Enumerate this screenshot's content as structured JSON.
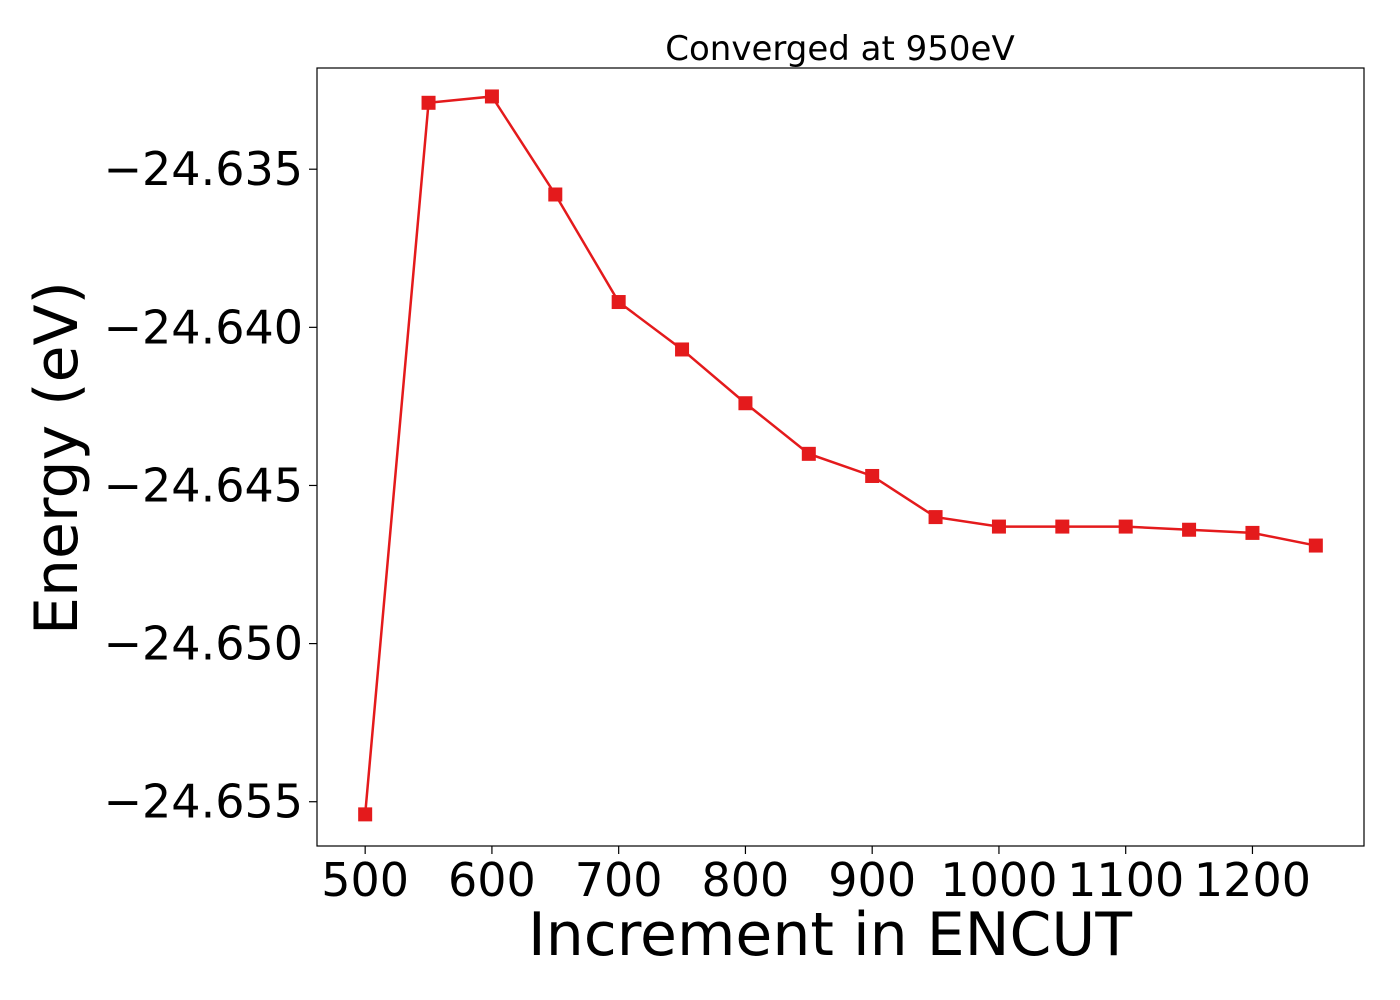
{
  "chart_data": {
    "type": "line",
    "title": "Converged at 950eV",
    "xlabel": "Increment in ENCUT",
    "ylabel": "Energy (eV)",
    "xlim": [
      462,
      1288
    ],
    "ylim": [
      -24.6564,
      -24.6318
    ],
    "xticks": [
      500,
      600,
      700,
      800,
      900,
      1000,
      1100,
      1200
    ],
    "xtick_labels": [
      "500",
      "600",
      "700",
      "800",
      "900",
      "1000",
      "1100",
      "1200"
    ],
    "yticks": [
      -24.635,
      -24.64,
      -24.645,
      -24.65,
      -24.655
    ],
    "ytick_labels": [
      "−24.635",
      "−24.640",
      "−24.645",
      "−24.650",
      "−24.655"
    ],
    "grid": false,
    "series": [
      {
        "color": "#e41a1c",
        "marker": "square",
        "x": [
          500,
          550,
          600,
          650,
          700,
          750,
          800,
          850,
          900,
          950,
          1000,
          1050,
          1100,
          1150,
          1200,
          1250
        ],
        "y": [
          -24.6554,
          -24.6329,
          -24.6327,
          -24.6358,
          -24.6392,
          -24.6407,
          -24.6424,
          -24.644,
          -24.6447,
          -24.646,
          -24.6463,
          -24.6463,
          -24.6463,
          -24.6464,
          -24.6465,
          -24.6469
        ]
      }
    ]
  }
}
